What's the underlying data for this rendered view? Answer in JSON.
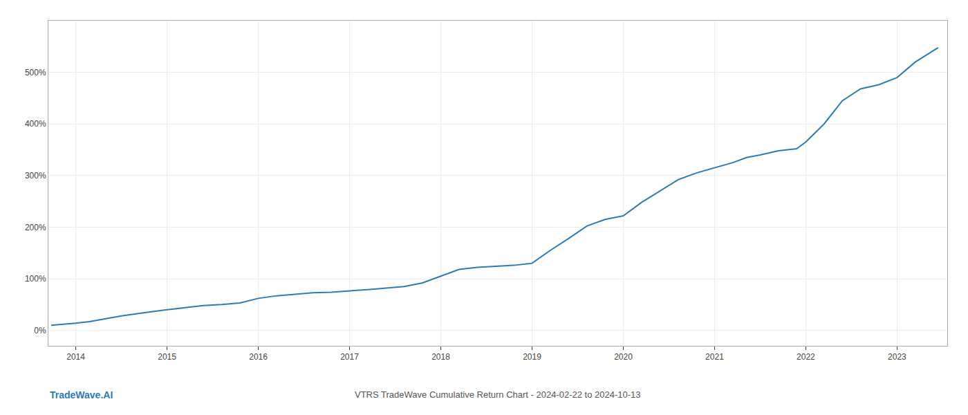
{
  "chart_data": {
    "type": "line",
    "title": "VTRS TradeWave Cumulative Return Chart - 2024-02-22 to 2024-10-13",
    "annotations": [
      "TradeWave.AI"
    ],
    "color": "#2b7bb9",
    "grid": true,
    "xlim": [
      2013.7,
      2023.55
    ],
    "xticks": [
      2014,
      2015,
      2016,
      2017,
      2018,
      2019,
      2020,
      2021,
      2022,
      2023
    ],
    "ylim": [
      -30,
      600
    ],
    "yticks": [
      {
        "value": 0,
        "label": "0%"
      },
      {
        "value": 100,
        "label": "100%"
      },
      {
        "value": 200,
        "label": "200%"
      },
      {
        "value": 300,
        "label": "300%"
      },
      {
        "value": 400,
        "label": "400%"
      },
      {
        "value": 500,
        "label": "500%"
      }
    ],
    "x": [
      2013.73,
      2013.9,
      2014.0,
      2014.15,
      2014.3,
      2014.5,
      2014.7,
      2014.9,
      2015.0,
      2015.2,
      2015.4,
      2015.6,
      2015.8,
      2016.0,
      2016.2,
      2016.4,
      2016.6,
      2016.8,
      2017.0,
      2017.2,
      2017.4,
      2017.6,
      2017.8,
      2018.0,
      2018.1,
      2018.2,
      2018.4,
      2018.6,
      2018.8,
      2019.0,
      2019.2,
      2019.4,
      2019.6,
      2019.8,
      2020.0,
      2020.2,
      2020.4,
      2020.6,
      2020.8,
      2021.0,
      2021.1,
      2021.2,
      2021.35,
      2021.5,
      2021.7,
      2021.9,
      2022.0,
      2022.2,
      2022.4,
      2022.6,
      2022.8,
      2023.0,
      2023.2,
      2023.45
    ],
    "values": [
      10,
      12,
      14,
      17,
      22,
      28,
      33,
      37,
      40,
      44,
      48,
      50,
      53,
      62,
      67,
      70,
      73,
      74,
      76,
      79,
      82,
      85,
      92,
      105,
      112,
      118,
      122,
      124,
      126,
      130,
      155,
      178,
      202,
      215,
      222,
      248,
      270,
      292,
      305,
      315,
      320,
      325,
      335,
      340,
      348,
      352,
      365,
      400,
      445,
      468,
      476,
      490,
      520,
      548
    ]
  }
}
